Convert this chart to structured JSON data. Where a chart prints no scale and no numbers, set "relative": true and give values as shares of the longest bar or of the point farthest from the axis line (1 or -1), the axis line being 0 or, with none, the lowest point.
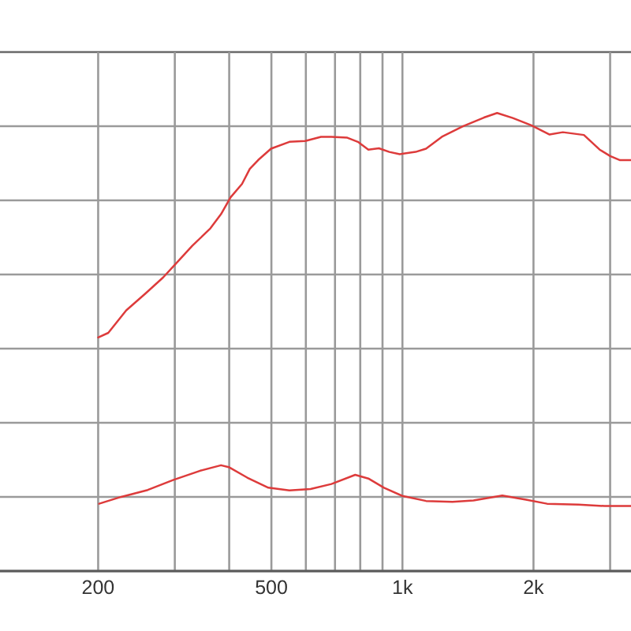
{
  "chart_data": {
    "type": "line",
    "log": "x",
    "relative": true,
    "grid": true,
    "tick_labels": "x",
    "line_style": "solid",
    "xlim": [
      119,
      3350
    ],
    "xticks": [
      200,
      {
        "value": 300,
        "label": null
      },
      {
        "value": 400,
        "label": null
      },
      500,
      {
        "value": 600,
        "label": null
      },
      {
        "value": 700,
        "label": null
      },
      {
        "value": 800,
        "label": null
      },
      {
        "value": 900,
        "label": null
      },
      {
        "value": 1000,
        "label": "1k"
      },
      {
        "value": 2000,
        "label": "2k"
      },
      {
        "value": 3000,
        "label": null
      }
    ],
    "series": [
      {
        "color": "#dd3b3b",
        "x": [
          200,
          211,
          232,
          257,
          282,
          303,
          329,
          362,
          383,
          403,
          428,
          446,
          466,
          499,
          550,
          598,
          650,
          687,
          747,
          790,
          835,
          883,
          933,
          986,
          1072,
          1133,
          1232,
          1377,
          1539,
          1650,
          1793,
          1977,
          2178,
          2336,
          2611,
          2838,
          3001,
          3162,
          3350
        ],
        "values": [
          0.51,
          0.52,
          0.569,
          0.606,
          0.641,
          0.673,
          0.71,
          0.748,
          0.779,
          0.816,
          0.845,
          0.878,
          0.897,
          0.922,
          0.937,
          0.939,
          0.948,
          0.948,
          0.946,
          0.937,
          0.92,
          0.923,
          0.915,
          0.91,
          0.915,
          0.922,
          0.948,
          0.971,
          0.99,
          1.0,
          0.989,
          0.973,
          0.953,
          0.958,
          0.952,
          0.92,
          0.906,
          0.897,
          0.897
        ]
      },
      {
        "color": "#dd3b3b",
        "x": [
          201,
          226,
          260,
          298,
          343,
          383,
          399,
          440,
          492,
          550,
          615,
          687,
          779,
          835,
          907,
          1000,
          1133,
          1303,
          1456,
          1696,
          1922,
          2149,
          2539,
          2917,
          3350
        ],
        "values": [
          0.147,
          0.162,
          0.177,
          0.199,
          0.219,
          0.231,
          0.227,
          0.204,
          0.182,
          0.176,
          0.179,
          0.19,
          0.21,
          0.202,
          0.182,
          0.164,
          0.153,
          0.151,
          0.154,
          0.165,
          0.156,
          0.147,
          0.145,
          0.142,
          0.142
        ]
      }
    ]
  }
}
